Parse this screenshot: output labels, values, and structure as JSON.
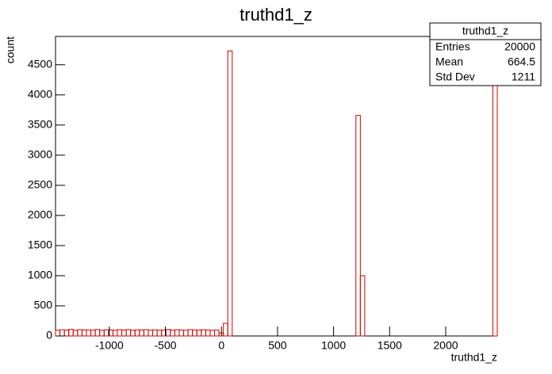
{
  "chart_data": {
    "type": "histogram",
    "title": "truthd1_z",
    "x_label": "truthd1_z",
    "y_label": "count",
    "color": "#d40000",
    "bins": [
      -1480,
      -1440.6,
      -1401.2,
      -1361.8,
      -1322.4,
      -1283,
      -1243.6,
      -1204.2,
      -1164.8,
      -1125.4,
      -1086,
      -1046.6,
      -1007.2,
      -967.8,
      -928.4,
      -889,
      -849.6,
      -810.2,
      -770.8,
      -731.4,
      -692,
      -652.6,
      -613.2,
      -573.8,
      -534.4,
      -495,
      -455.6,
      -416.2,
      -376.8,
      -337.4,
      -298,
      -258.6,
      -219.2,
      -179.8,
      -140.4,
      -101,
      -61.6,
      -22.2,
      17.2,
      56.6,
      96,
      135.4,
      174.8,
      214.2,
      253.6,
      293,
      332.4,
      371.8,
      411.2,
      450.6,
      490,
      529.4,
      568.8,
      608.2,
      647.6,
      687,
      726.4,
      765.8,
      805.2,
      844.6,
      884,
      923.4,
      962.8,
      1002.2,
      1041.6,
      1081,
      1120.4,
      1159.8,
      1199.2,
      1238.6,
      1278,
      1317.4,
      1356.8,
      1396.2,
      1435.6,
      1475,
      1514.4,
      1553.8,
      1593.2,
      1632.6,
      1672,
      1711.4,
      1750.8,
      1790.2,
      1829.6,
      1869,
      1908.4,
      1947.8,
      1987.2,
      2026.6,
      2066,
      2105.4,
      2144.8,
      2184.2,
      2223.6,
      2263,
      2302.4,
      2341.8,
      2381.2,
      2420.6,
      2460
    ],
    "values": [
      95,
      102,
      98,
      110,
      92,
      105,
      99,
      101,
      97,
      108,
      94,
      103,
      100,
      96,
      104,
      98,
      107,
      93,
      101,
      99,
      105,
      97,
      102,
      95,
      100,
      108,
      96,
      103,
      99,
      94,
      106,
      101,
      97,
      104,
      100,
      95,
      98,
      50,
      210,
      4730,
      0,
      0,
      0,
      0,
      0,
      0,
      0,
      0,
      0,
      0,
      0,
      0,
      0,
      0,
      0,
      0,
      0,
      0,
      0,
      0,
      0,
      0,
      0,
      0,
      0,
      0,
      0,
      0,
      3660,
      1000,
      0,
      0,
      0,
      0,
      0,
      0,
      0,
      0,
      0,
      0,
      0,
      0,
      0,
      0,
      0,
      0,
      0,
      0,
      0,
      0,
      0,
      0,
      0,
      0,
      0,
      0,
      0,
      0,
      0,
      4240
    ],
    "xlim": [
      -1480,
      2460
    ],
    "ylim": [
      0,
      4970
    ],
    "xticks": [
      -1000,
      -500,
      0,
      500,
      1000,
      1500,
      2000
    ],
    "yticks": [
      0,
      500,
      1000,
      1500,
      2000,
      2500,
      3000,
      3500,
      4000,
      4500
    ],
    "stats": {
      "title": "truthd1_z",
      "rows": [
        {
          "label": "Entries",
          "value": 20000
        },
        {
          "label": "Mean",
          "value": 664.5
        },
        {
          "label": "Std Dev",
          "value": 1211
        }
      ]
    }
  }
}
